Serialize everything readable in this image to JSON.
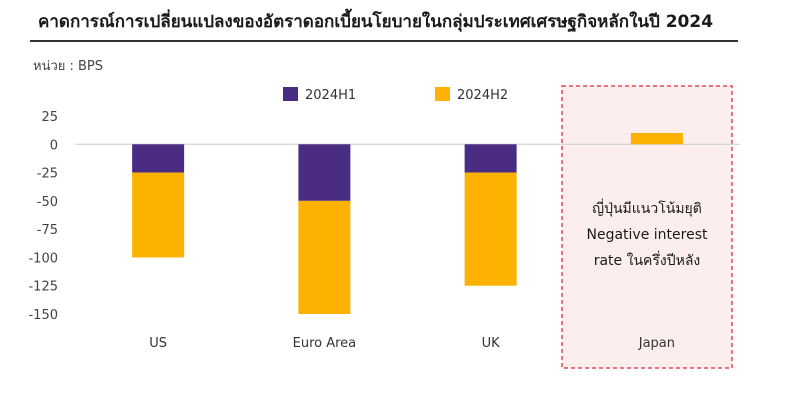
{
  "header": {
    "title": "คาดการณ์การเปลี่ยนแปลงของอัตราดอกเบี้ยนโยบายในกลุ่มประเทศเศรษฐกิจหลักในปี 2024",
    "unit": "หน่วย : BPS"
  },
  "chart_data": {
    "type": "bar",
    "stacked": true,
    "categories": [
      "US",
      "Euro Area",
      "UK",
      "Japan"
    ],
    "series": [
      {
        "name": "2024H1",
        "color": "#4b2c83",
        "values": [
          -25,
          -50,
          -25,
          0
        ]
      },
      {
        "name": "2024H2",
        "color": "#fdb100",
        "values": [
          -75,
          -100,
          -100,
          10
        ]
      }
    ],
    "ylim": [
      -150,
      25
    ],
    "yticks": [
      25,
      0,
      -25,
      -50,
      -75,
      -100,
      -125,
      -150
    ],
    "legend_position": "top",
    "grid": false,
    "annotation": {
      "category": "Japan",
      "lines": [
        "ญี่ปุ่นมีแนวโน้มยุติ",
        "Negative interest",
        "rate ในครึ่งปีหลัง"
      ]
    }
  }
}
